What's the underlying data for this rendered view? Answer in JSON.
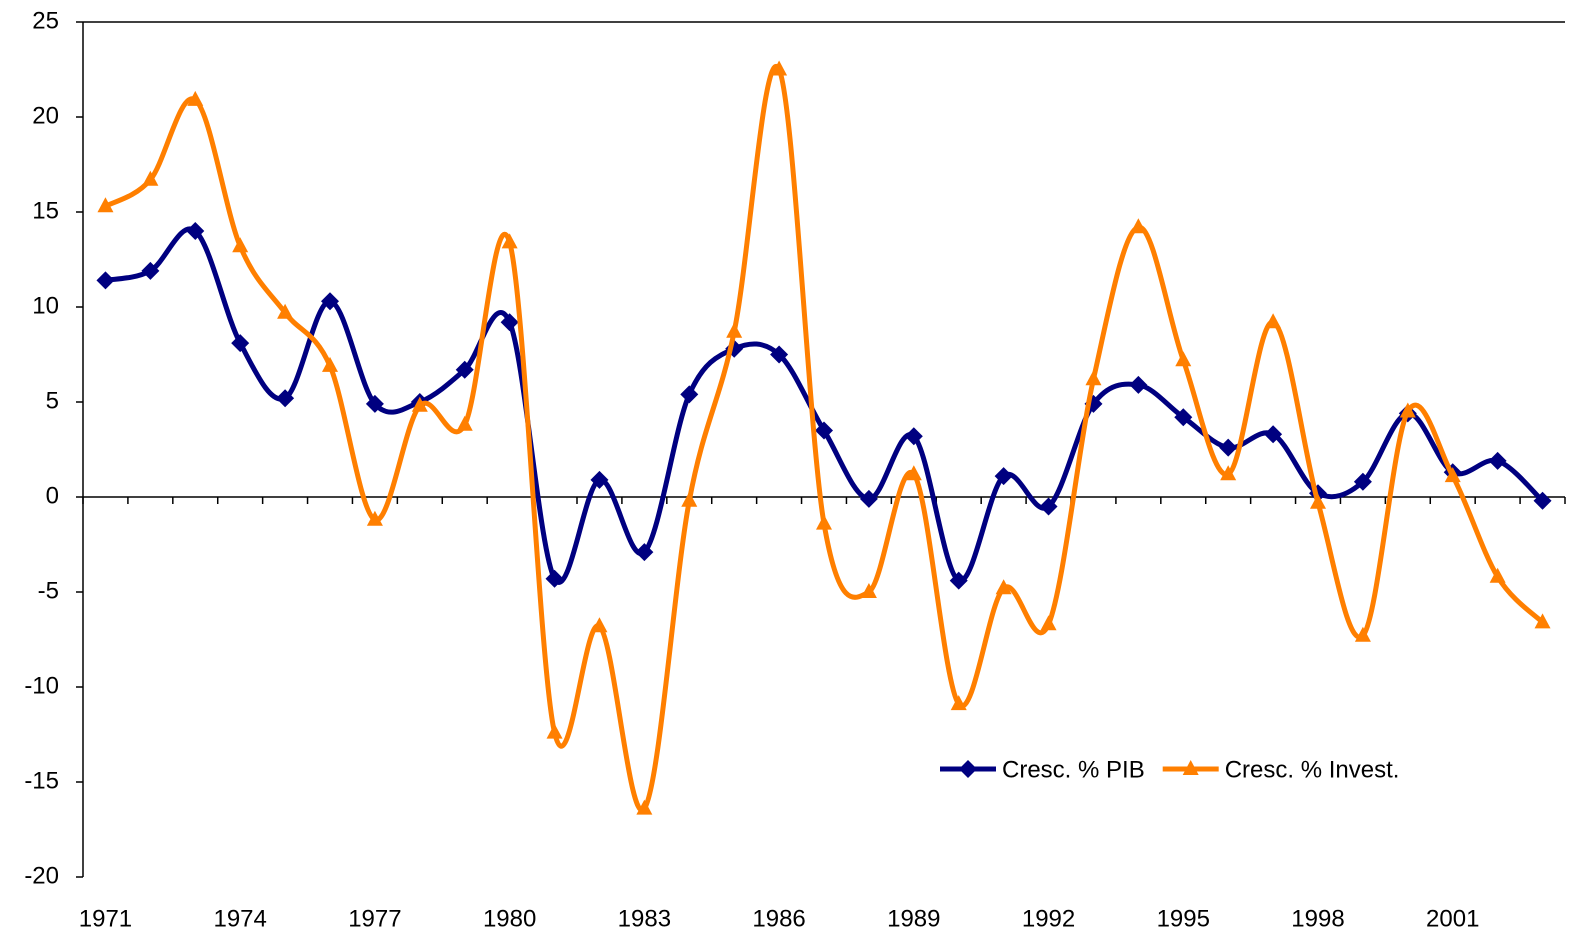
{
  "chart_data": {
    "type": "line",
    "categories": [
      "1971",
      null,
      null,
      "1974",
      null,
      null,
      "1977",
      null,
      null,
      "1980",
      null,
      null,
      "1983",
      null,
      null,
      "1986",
      null,
      null,
      "1989",
      null,
      null,
      "1992",
      null,
      null,
      "1995",
      null,
      null,
      "1998",
      null,
      null,
      "2001",
      null,
      null
    ],
    "series": [
      {
        "name": "Cresc. % PIB",
        "color": "#000080",
        "marker": "diamond",
        "values": [
          11.4,
          11.9,
          14.0,
          8.1,
          5.2,
          10.3,
          4.9,
          5.0,
          6.7,
          9.2,
          -4.3,
          0.9,
          -2.9,
          5.4,
          7.8,
          7.5,
          3.5,
          -0.1,
          3.2,
          -4.4,
          1.1,
          -0.5,
          4.9,
          5.9,
          4.2,
          2.6,
          3.3,
          0.2,
          0.8,
          4.4,
          1.3,
          1.9,
          -0.2
        ]
      },
      {
        "name": "Cresc. % Invest.",
        "color": "#ff7f00",
        "marker": "triangle",
        "values": [
          15.3,
          16.7,
          20.9,
          13.2,
          9.7,
          6.9,
          -1.2,
          4.8,
          3.8,
          13.4,
          -12.4,
          -6.8,
          -16.4,
          -0.2,
          8.7,
          22.5,
          -1.4,
          -5.0,
          1.2,
          -10.9,
          -4.8,
          -6.7,
          6.2,
          14.2,
          7.2,
          1.2,
          9.2,
          -0.3,
          -7.3,
          4.5,
          1.1,
          -4.2,
          -6.6
        ]
      }
    ],
    "ylim": [
      -20,
      25
    ],
    "yticks": [
      -20,
      -15,
      -10,
      -5,
      0,
      5,
      10,
      15,
      20,
      25
    ],
    "grid": false,
    "legend": "lower right"
  }
}
